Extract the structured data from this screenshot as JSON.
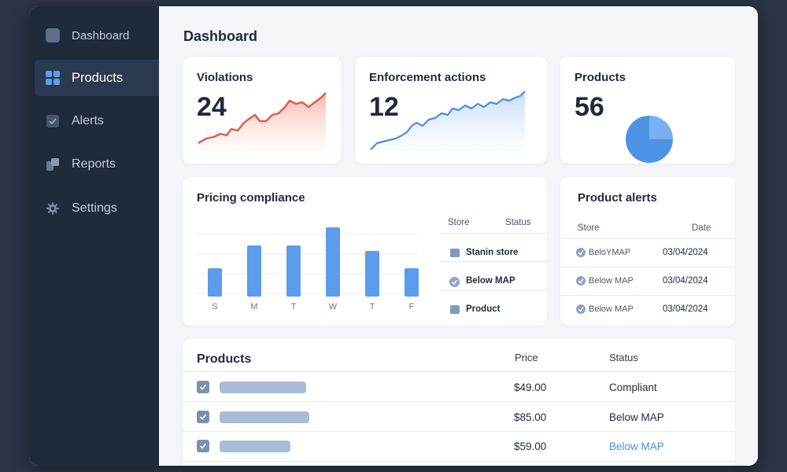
{
  "sidebar": {
    "items": [
      {
        "label": "Dashboard",
        "icon": "dashboard-icon",
        "active": false
      },
      {
        "label": "Products",
        "icon": "grid-icon",
        "active": true
      },
      {
        "label": "Alerts",
        "icon": "check-square-icon",
        "active": false
      },
      {
        "label": "Reports",
        "icon": "reports-icon",
        "active": false
      },
      {
        "label": "Settings",
        "icon": "gear-icon",
        "active": false
      }
    ]
  },
  "main": {
    "title": "Dashboard",
    "violations": {
      "title": "Violations",
      "value": "24",
      "color": "#e05a4a"
    },
    "enforcement": {
      "title": "Enforcement actions",
      "value": "12",
      "color": "#4b8fe0"
    },
    "products_card": {
      "title": "Products",
      "value": "56",
      "color": "#5b9cec"
    },
    "pricing": {
      "title": "Pricing compliance",
      "table": {
        "headers": [
          "Store",
          "Status"
        ],
        "rows": [
          {
            "icon": "message-icon",
            "text": "Stanin store"
          },
          {
            "icon": "check-circle-icon",
            "text": "Below MAP"
          },
          {
            "icon": "list-icon",
            "text": "Product"
          }
        ]
      }
    },
    "alerts": {
      "title": "Product alerts",
      "headers": [
        "Store",
        "Date"
      ],
      "rows": [
        {
          "store": "BeloYMAP",
          "date": "03/04/2024"
        },
        {
          "store": "Below MAP",
          "date": "03/04/2024"
        },
        {
          "store": "Below MAP",
          "date": "03/04/2024"
        }
      ]
    },
    "products_table": {
      "title": "Products",
      "headers": [
        "Price",
        "Status"
      ],
      "rows": [
        {
          "price": "$49.00",
          "status": "Compliant",
          "checked": true
        },
        {
          "price": "$85.00",
          "status": "Below MAP",
          "checked": true
        },
        {
          "price": "$59.00",
          "status": "Below MAP",
          "checked": true
        }
      ]
    }
  },
  "chart_data": {
    "type": "bar",
    "categories": [
      "S",
      "M",
      "T",
      "W",
      "T",
      "F"
    ],
    "values": [
      36,
      65,
      65,
      88,
      58,
      36
    ],
    "ylim": [
      0,
      100
    ],
    "grid": true,
    "color": "#5b9cec"
  }
}
